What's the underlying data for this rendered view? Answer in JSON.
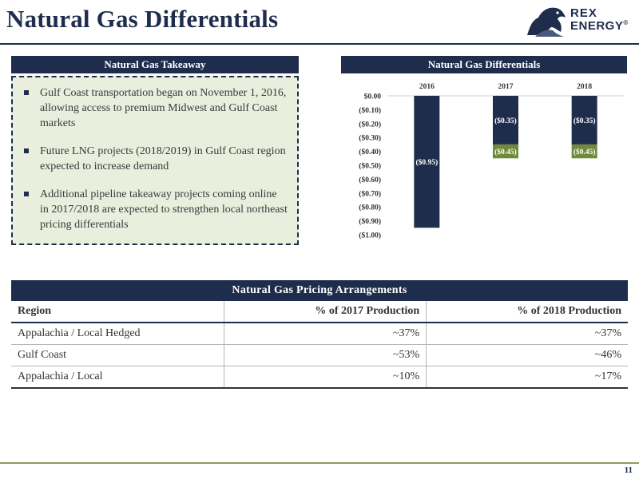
{
  "page": {
    "title": "Natural Gas Differentials",
    "page_number": "11"
  },
  "logo": {
    "name": "rex-energy-logo",
    "line1": "REX",
    "line2": "ENERGY",
    "reg_mark": "®"
  },
  "takeaway": {
    "heading": "Natural Gas Takeaway",
    "bullets": [
      "Gulf Coast transportation began on November 1, 2016, allowing access to premium Midwest and Gulf Coast markets",
      "Future LNG projects (2018/2019) in Gulf Coast region expected to increase demand",
      "Additional pipeline takeaway projects coming online in 2017/2018 are expected to strengthen local northeast pricing differentials"
    ]
  },
  "chart_data": {
    "type": "bar",
    "stacked": true,
    "title": "Natural Gas Differentials",
    "categories": [
      "2016",
      "2017",
      "2018"
    ],
    "series": [
      {
        "values": [
          -0.95,
          -0.35,
          -0.35
        ],
        "labels": [
          "($0.95)",
          "($0.35)",
          "($0.35)"
        ],
        "color": "#1f2d4d"
      },
      {
        "values": [
          0,
          -0.1,
          -0.1
        ],
        "labels": [
          "",
          "($0.45)",
          "($0.45)"
        ],
        "color": "#6f8a3a"
      }
    ],
    "ylim": [
      -1.0,
      0.0
    ],
    "yticks": [
      0.0,
      -0.1,
      -0.2,
      -0.3,
      -0.4,
      -0.5,
      -0.6,
      -0.7,
      -0.8,
      -0.9,
      -1.0
    ],
    "ytick_labels": [
      "$0.00",
      "($0.10)",
      "($0.20)",
      "($0.30)",
      "($0.40)",
      "($0.50)",
      "($0.60)",
      "($0.70)",
      "($0.80)",
      "($0.90)",
      "($1.00)"
    ],
    "category_axis": "top",
    "grid": false
  },
  "pricing": {
    "heading": "Natural Gas Pricing Arrangements",
    "columns": [
      "Region",
      "% of 2017 Production",
      "% of 2018 Production"
    ],
    "rows": [
      [
        "Appalachia / Local Hedged",
        "~37%",
        "~37%"
      ],
      [
        "Gulf Coast",
        "~53%",
        "~46%"
      ],
      [
        "Appalachia / Local",
        "~10%",
        "~17%"
      ]
    ]
  },
  "colors": {
    "navy": "#1f2d4d",
    "olive": "#6f8a3a",
    "panel_fill": "#e9eedd",
    "footer_rule": "#8d9b63"
  }
}
